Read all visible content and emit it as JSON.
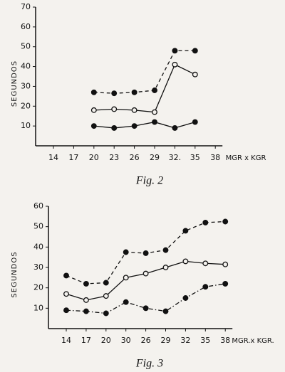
{
  "chart_data": [
    {
      "type": "line",
      "caption": "Fig. 2",
      "y_label": "SEGUNDOS",
      "x_label": "MGR x KGR",
      "categories": [
        "14",
        "17",
        "20",
        "23",
        "26",
        "29",
        "32.",
        "35",
        "38"
      ],
      "ylim": [
        0,
        70
      ],
      "yticks": [
        10,
        20,
        30,
        40,
        50,
        60,
        70
      ],
      "series": [
        {
          "color": "#111",
          "marker": "filled",
          "dash": "dashed",
          "values": [
            null,
            null,
            27,
            26.5,
            27,
            28,
            48,
            48,
            null
          ]
        },
        {
          "color": "#111",
          "marker": "open",
          "dash": "solid",
          "values": [
            null,
            null,
            18,
            18.5,
            18,
            17,
            41,
            36,
            null
          ]
        },
        {
          "color": "#111",
          "marker": "filled",
          "dash": "solid",
          "values": [
            null,
            null,
            10,
            9,
            10,
            12,
            9,
            12,
            null
          ]
        }
      ]
    },
    {
      "type": "line",
      "caption": "Fig. 3",
      "y_label": "SEGUNDOS",
      "x_label": "MGR.x KGR.",
      "categories": [
        "14",
        "17",
        "20",
        "30",
        "26",
        "29",
        "32",
        "35",
        "38"
      ],
      "ylim": [
        0,
        60
      ],
      "yticks": [
        10,
        20,
        30,
        40,
        50,
        60
      ],
      "series": [
        {
          "color": "#111",
          "marker": "filled",
          "dash": "dashed",
          "values": [
            26,
            22,
            22.5,
            37.5,
            37,
            38.5,
            48,
            52,
            52.5
          ]
        },
        {
          "color": "#111",
          "marker": "open",
          "dash": "solid",
          "values": [
            17,
            14,
            16,
            25,
            27,
            30,
            33,
            32,
            31.5
          ]
        },
        {
          "color": "#111",
          "marker": "filled",
          "dash": "dashdot",
          "values": [
            9,
            8.5,
            7.5,
            13,
            10,
            8.5,
            15,
            20.5,
            22
          ]
        }
      ]
    }
  ]
}
